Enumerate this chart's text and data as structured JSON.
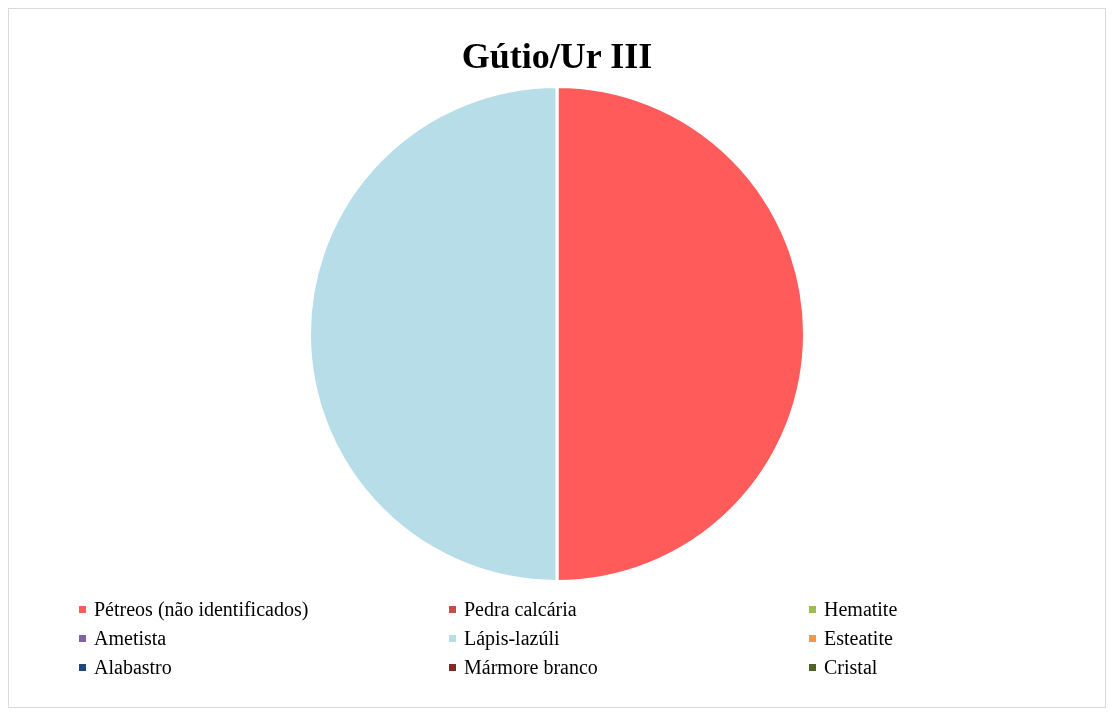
{
  "chart_data": {
    "type": "pie",
    "title": "Gútio/Ur III",
    "legend": "bottom",
    "categories": [
      "Pétreos (não identificados)",
      "Pedra calcária",
      "Hematite",
      "Ametista",
      "Lápis-lazúli",
      "Esteatite",
      "Alabastro",
      "Mármore branco",
      "Cristal"
    ],
    "values": [
      50,
      0,
      0,
      0,
      50,
      0,
      0,
      0,
      0
    ],
    "colors": [
      "#ff5b5b",
      "#c0504d",
      "#9bbb59",
      "#8064a2",
      "#b7dde8",
      "#f79646",
      "#1f497d",
      "#7f2a27",
      "#4f6228"
    ]
  }
}
